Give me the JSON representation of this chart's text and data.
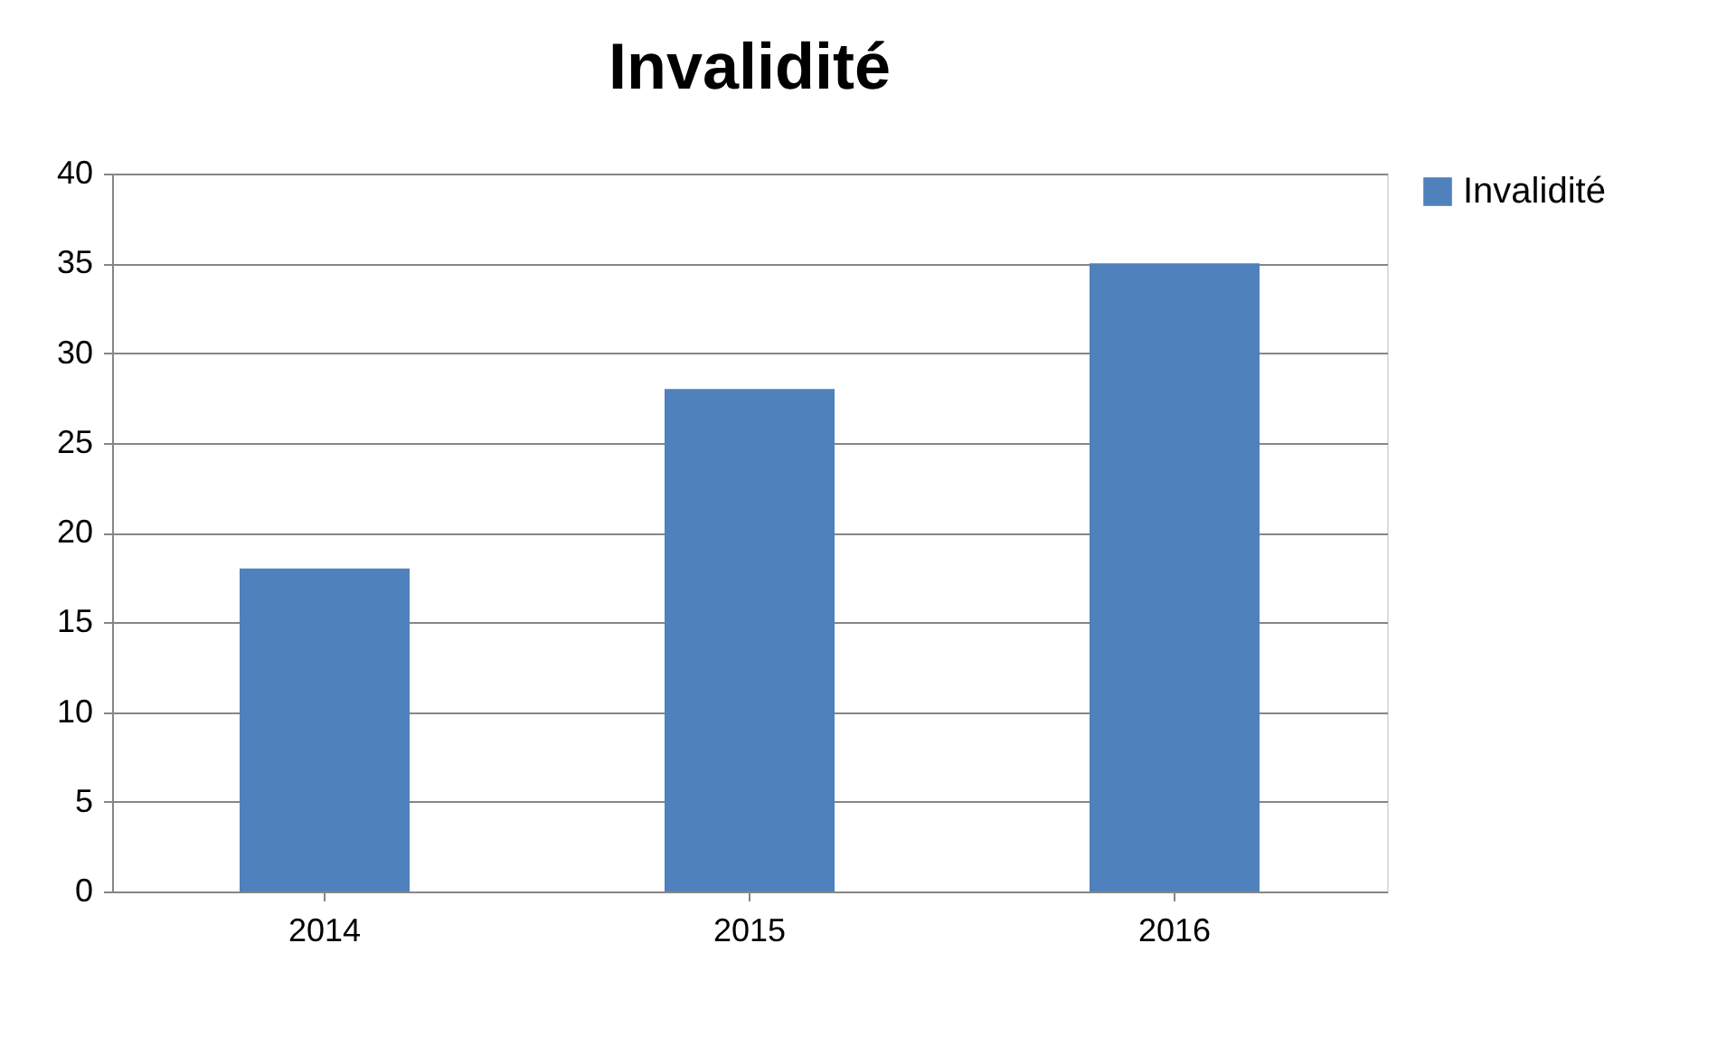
{
  "chart_data": {
    "type": "bar",
    "title": "Invalidité",
    "categories": [
      "2014",
      "2015",
      "2016"
    ],
    "series": [
      {
        "name": "Invalidité",
        "color": "#4f81bd",
        "values": [
          18,
          28,
          35
        ]
      }
    ],
    "ylim": [
      0,
      40
    ],
    "yticks": [
      0,
      5,
      10,
      15,
      20,
      25,
      30,
      35,
      40
    ],
    "grid": "y",
    "legend": "right"
  }
}
